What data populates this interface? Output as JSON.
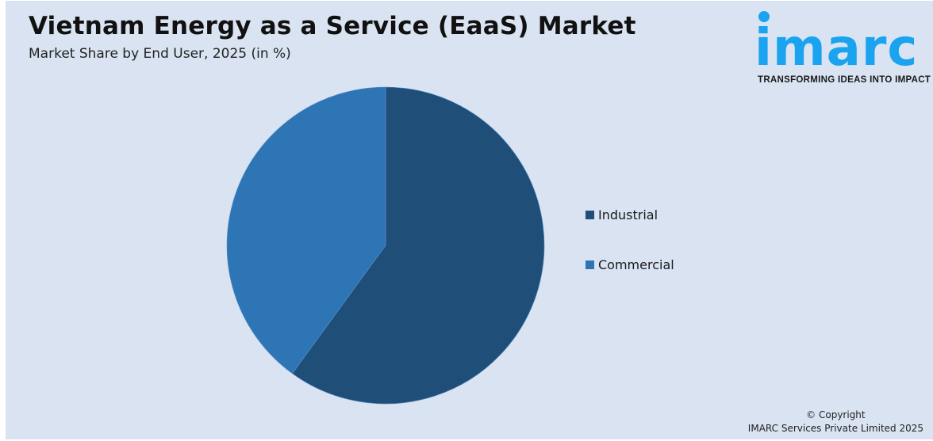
{
  "header": {
    "title": "Vietnam Energy as a Service (EaaS) Market",
    "subtitle": "Market Share by End User, 2025 (in %)"
  },
  "logo": {
    "wordmark": "imarc",
    "tagline": "TRANSFORMING IDEAS INTO IMPACT",
    "color": "#1aa3ef"
  },
  "legend": {
    "items": [
      {
        "label": "Industrial",
        "color": "#1f4e79"
      },
      {
        "label": "Commercial",
        "color": "#2e75b6"
      }
    ]
  },
  "footer": {
    "copyright_line1": "© Copyright",
    "copyright_line2": "IMARC Services Private Limited 2025"
  },
  "chart_data": {
    "type": "pie",
    "title": "Vietnam Energy as a Service (EaaS) Market",
    "subtitle": "Market Share by End User, 2025 (in %)",
    "categories": [
      "Industrial",
      "Commercial"
    ],
    "values": [
      60,
      40
    ],
    "colors": [
      "#1f4e79",
      "#2e75b6"
    ],
    "start_angle_deg": 0,
    "direction": "clockwise",
    "legend_position": "right",
    "data_labels": false
  }
}
